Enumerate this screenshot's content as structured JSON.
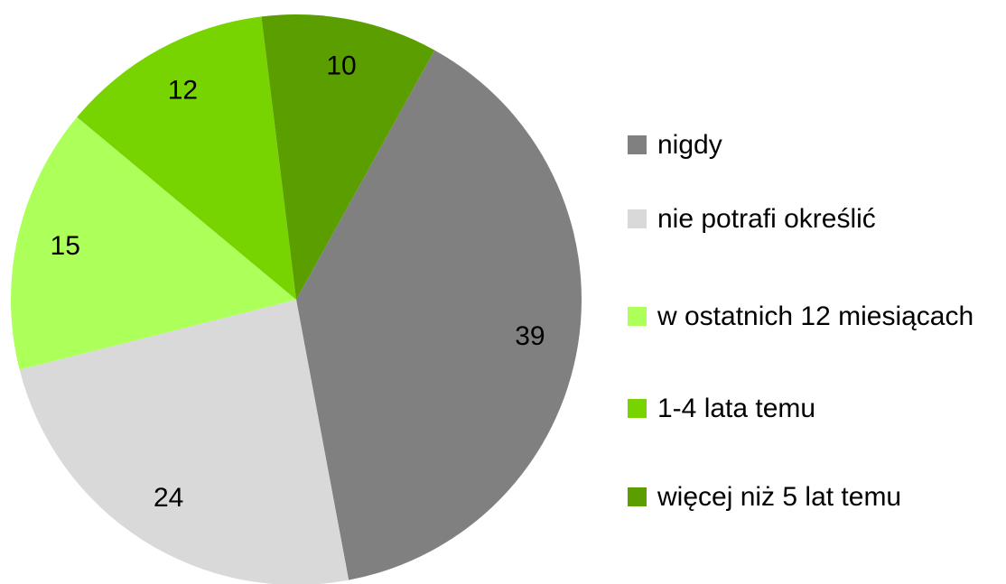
{
  "chart_data": {
    "type": "pie",
    "categories": [
      "nigdy",
      "nie potrafi określić",
      "w ostatnich 12 miesiącach",
      "1-4 lata temu",
      "więcej niż 5 lat temu"
    ],
    "values": [
      39,
      24,
      15,
      12,
      10
    ],
    "colors": [
      "#808080",
      "#d9d9d9",
      "#adff5a",
      "#77d400",
      "#5a9e00"
    ],
    "start_angle": 29,
    "legend": "right"
  }
}
